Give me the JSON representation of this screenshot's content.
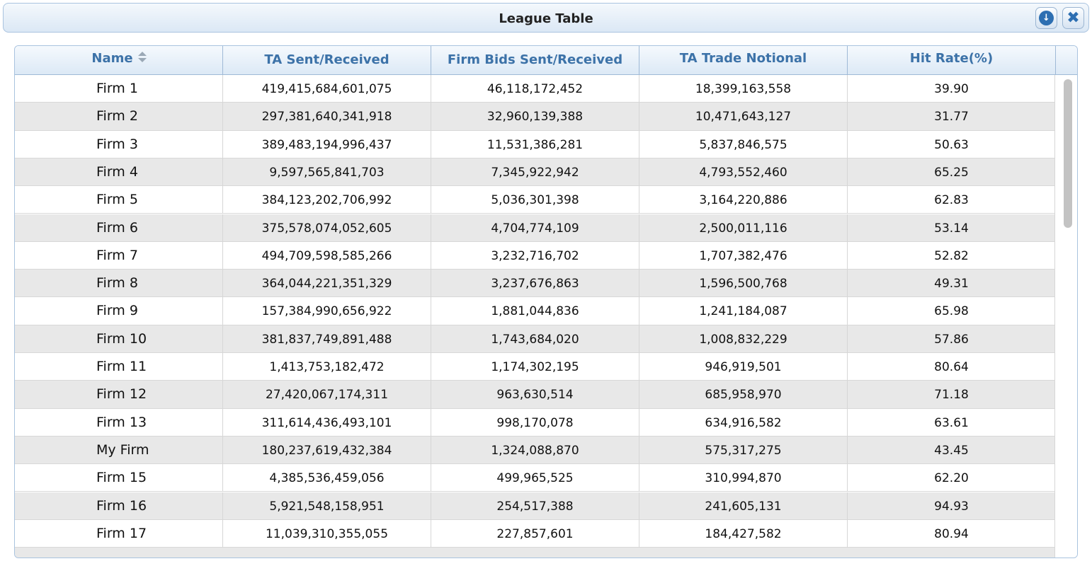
{
  "window": {
    "title": "League Table",
    "download_icon": "download-icon",
    "close_icon": "close-icon"
  },
  "table": {
    "columns": [
      {
        "label": "Name",
        "sortable": true
      },
      {
        "label": "TA Sent/Received"
      },
      {
        "label": "Firm Bids Sent/Received"
      },
      {
        "label": "TA Trade Notional"
      },
      {
        "label": "Hit Rate(%)"
      }
    ],
    "rows": [
      [
        "Firm 1",
        "419,415,684,601,075",
        "46,118,172,452",
        "18,399,163,558",
        "39.90"
      ],
      [
        "Firm 2",
        "297,381,640,341,918",
        "32,960,139,388",
        "10,471,643,127",
        "31.77"
      ],
      [
        "Firm 3",
        "389,483,194,996,437",
        "11,531,386,281",
        "5,837,846,575",
        "50.63"
      ],
      [
        "Firm 4",
        "9,597,565,841,703",
        "7,345,922,942",
        "4,793,552,460",
        "65.25"
      ],
      [
        "Firm 5",
        "384,123,202,706,992",
        "5,036,301,398",
        "3,164,220,886",
        "62.83"
      ],
      [
        "Firm 6",
        "375,578,074,052,605",
        "4,704,774,109",
        "2,500,011,116",
        "53.14"
      ],
      [
        "Firm 7",
        "494,709,598,585,266",
        "3,232,716,702",
        "1,707,382,476",
        "52.82"
      ],
      [
        "Firm 8",
        "364,044,221,351,329",
        "3,237,676,863",
        "1,596,500,768",
        "49.31"
      ],
      [
        "Firm 9",
        "157,384,990,656,922",
        "1,881,044,836",
        "1,241,184,087",
        "65.98"
      ],
      [
        "Firm 10",
        "381,837,749,891,488",
        "1,743,684,020",
        "1,008,832,229",
        "57.86"
      ],
      [
        "Firm 11",
        "1,413,753,182,472",
        "1,174,302,195",
        "946,919,501",
        "80.64"
      ],
      [
        "Firm 12",
        "27,420,067,174,311",
        "963,630,514",
        "685,958,970",
        "71.18"
      ],
      [
        "Firm 13",
        "311,614,436,493,101",
        "998,170,078",
        "634,916,582",
        "63.61"
      ],
      [
        "My Firm",
        "180,237,619,432,384",
        "1,324,088,870",
        "575,317,275",
        "43.45"
      ],
      [
        "Firm 15",
        "4,385,536,459,056",
        "499,965,525",
        "310,994,870",
        "62.20"
      ],
      [
        "Firm 16",
        "5,921,548,158,951",
        "254,517,388",
        "241,605,131",
        "94.93"
      ],
      [
        "Firm 17",
        "11,039,310,355,055",
        "227,857,601",
        "184,427,582",
        "80.94"
      ]
    ]
  }
}
